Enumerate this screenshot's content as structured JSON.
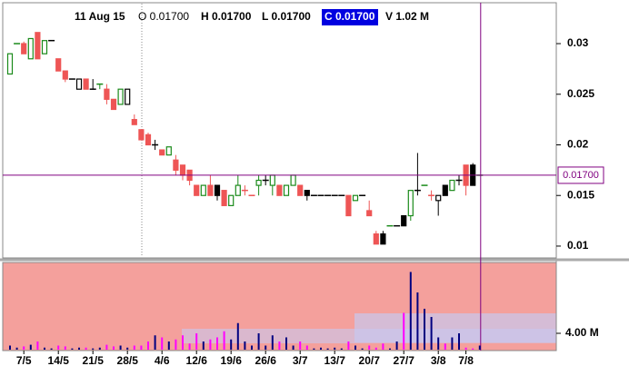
{
  "header": {
    "date": "11 Aug 15",
    "open": "O 0.01700",
    "high": "H 0.01700",
    "low": "L 0.01700",
    "close": "C 0.01700",
    "volume": "V 1.02 M"
  },
  "chart_data": [
    {
      "type": "candlestick",
      "categories": [
        null,
        null,
        "7/5",
        null,
        null,
        null,
        null,
        "14/5",
        null,
        null,
        null,
        null,
        "21/5",
        null,
        null,
        null,
        null,
        "28/5",
        null,
        null,
        null,
        null,
        "4/6",
        null,
        null,
        null,
        null,
        "12/6",
        null,
        null,
        null,
        null,
        "19/6",
        null,
        null,
        null,
        null,
        "26/6",
        null,
        null,
        null,
        null,
        "3/7",
        null,
        null,
        null,
        null,
        "13/7",
        null,
        null,
        null,
        null,
        "20/7",
        null,
        null,
        null,
        null,
        "27/7",
        null,
        null,
        null,
        null,
        "3/8",
        null,
        null,
        null,
        "7/8",
        null,
        null
      ],
      "open": [
        0.027,
        0.03,
        0.03,
        0.0285,
        0.0311,
        0.029,
        0.0303,
        0.0285,
        0.0273,
        0.0265,
        0.0255,
        0.0265,
        0.0255,
        0.026,
        0.0255,
        0.0245,
        0.024,
        0.024,
        0.0225,
        0.0215,
        0.021,
        0.02,
        0.0195,
        0.019,
        0.0185,
        0.018,
        0.0175,
        0.016,
        0.015,
        0.016,
        0.016,
        0.0155,
        0.014,
        0.015,
        0.0155,
        0.015,
        0.016,
        0.0165,
        0.016,
        0.016,
        0.015,
        0.016,
        0.016,
        0.0155,
        0.015,
        0.015,
        0.015,
        0.015,
        0.015,
        0.015,
        0.0145,
        0.015,
        0.0135,
        0.0112,
        0.0112,
        0.012,
        0.012,
        0.013,
        0.013,
        0.0155,
        0.016,
        0.015,
        0.0145,
        0.016,
        0.0155,
        0.0165,
        0.018,
        0.018,
        0.017
      ],
      "high": [
        0.029,
        0.03,
        0.0302,
        0.0305,
        0.0311,
        0.0303,
        0.0303,
        0.0285,
        0.0273,
        0.0265,
        0.0265,
        0.0265,
        0.0265,
        0.026,
        0.026,
        0.0245,
        0.0255,
        0.0255,
        0.023,
        0.0215,
        0.0212,
        0.0205,
        0.0195,
        0.0198,
        0.019,
        0.018,
        0.0175,
        0.016,
        0.016,
        0.017,
        0.016,
        0.0155,
        0.015,
        0.017,
        0.016,
        0.015,
        0.017,
        0.017,
        0.017,
        0.016,
        0.016,
        0.017,
        0.016,
        0.0155,
        0.015,
        0.015,
        0.015,
        0.015,
        0.015,
        0.015,
        0.015,
        0.015,
        0.0145,
        0.0115,
        0.0115,
        0.012,
        0.012,
        0.013,
        0.0155,
        0.0192,
        0.016,
        0.0155,
        0.015,
        0.016,
        0.0165,
        0.017,
        0.018,
        0.0182,
        0.017
      ],
      "low": [
        0.027,
        0.03,
        0.029,
        0.0285,
        0.0285,
        0.029,
        0.0303,
        0.0273,
        0.0262,
        0.0265,
        0.0255,
        0.0255,
        0.0255,
        0.0255,
        0.024,
        0.0235,
        0.024,
        0.024,
        0.022,
        0.0205,
        0.02,
        0.0195,
        0.019,
        0.019,
        0.017,
        0.0165,
        0.016,
        0.015,
        0.015,
        0.015,
        0.0145,
        0.014,
        0.014,
        0.015,
        0.015,
        0.015,
        0.015,
        0.016,
        0.015,
        0.015,
        0.015,
        0.016,
        0.015,
        0.0145,
        0.015,
        0.015,
        0.015,
        0.015,
        0.015,
        0.013,
        0.0145,
        0.015,
        0.013,
        0.0102,
        0.0102,
        0.012,
        0.012,
        0.012,
        0.0125,
        0.015,
        0.016,
        0.0145,
        0.013,
        0.015,
        0.0155,
        0.016,
        0.015,
        0.016,
        0.017
      ],
      "close": [
        0.029,
        0.03,
        0.029,
        0.0305,
        0.0285,
        0.0303,
        0.0303,
        0.0273,
        0.0265,
        0.0265,
        0.0265,
        0.0255,
        0.0255,
        0.026,
        0.0245,
        0.0235,
        0.0255,
        0.0255,
        0.022,
        0.0205,
        0.02,
        0.02,
        0.019,
        0.0198,
        0.0175,
        0.017,
        0.0165,
        0.015,
        0.016,
        0.015,
        0.015,
        0.014,
        0.015,
        0.016,
        0.0155,
        0.015,
        0.0165,
        0.0165,
        0.017,
        0.015,
        0.016,
        0.017,
        0.015,
        0.015,
        0.015,
        0.015,
        0.015,
        0.015,
        0.015,
        0.013,
        0.015,
        0.015,
        0.013,
        0.0102,
        0.0102,
        0.012,
        0.012,
        0.012,
        0.0155,
        0.0155,
        0.016,
        0.015,
        0.015,
        0.015,
        0.0165,
        0.0165,
        0.016,
        0.016,
        0.017
      ],
      "ylim": [
        0.00892,
        0.03404
      ],
      "yticks": [
        0.01,
        0.015,
        0.02,
        0.025,
        0.03
      ],
      "crosshair": {
        "value": 0.017,
        "label": "0.01700"
      },
      "up_color": "#1a8a1a",
      "down_color": "#ee5555",
      "flat_color": "#000000",
      "crosshair_color": "#800080"
    },
    {
      "type": "bar",
      "values": [
        1.0,
        0.5,
        0.8,
        1.2,
        2.0,
        0.5,
        0.3,
        1.0,
        0.8,
        0.3,
        0.5,
        0.5,
        0.3,
        0.5,
        1.2,
        0.8,
        1.0,
        0.5,
        1.0,
        1.0,
        2.0,
        3.5,
        3.0,
        2.0,
        2.5,
        3.5,
        1.5,
        4.0,
        2.0,
        2.5,
        3.0,
        4.5,
        2.5,
        6.5,
        2.0,
        1.0,
        4.0,
        1.0,
        3.5,
        2.0,
        3.0,
        1.0,
        2.0,
        1.0,
        0.3,
        0.5,
        0.3,
        0.5,
        0.3,
        2.0,
        1.0,
        0.3,
        1.0,
        0.5,
        1.5,
        0.3,
        2.0,
        9.0,
        19.0,
        14.0,
        10.0,
        8.0,
        3.0,
        1.5,
        3.0,
        4.0,
        0.5,
        0.3,
        1.0
      ],
      "ylim": [
        0,
        21.1
      ],
      "yticks": [
        {
          "value": 4,
          "label": "4.00 M"
        }
      ],
      "up_color": "#000080",
      "down_color": "#ff00ff",
      "background": "#f4a09c"
    }
  ]
}
